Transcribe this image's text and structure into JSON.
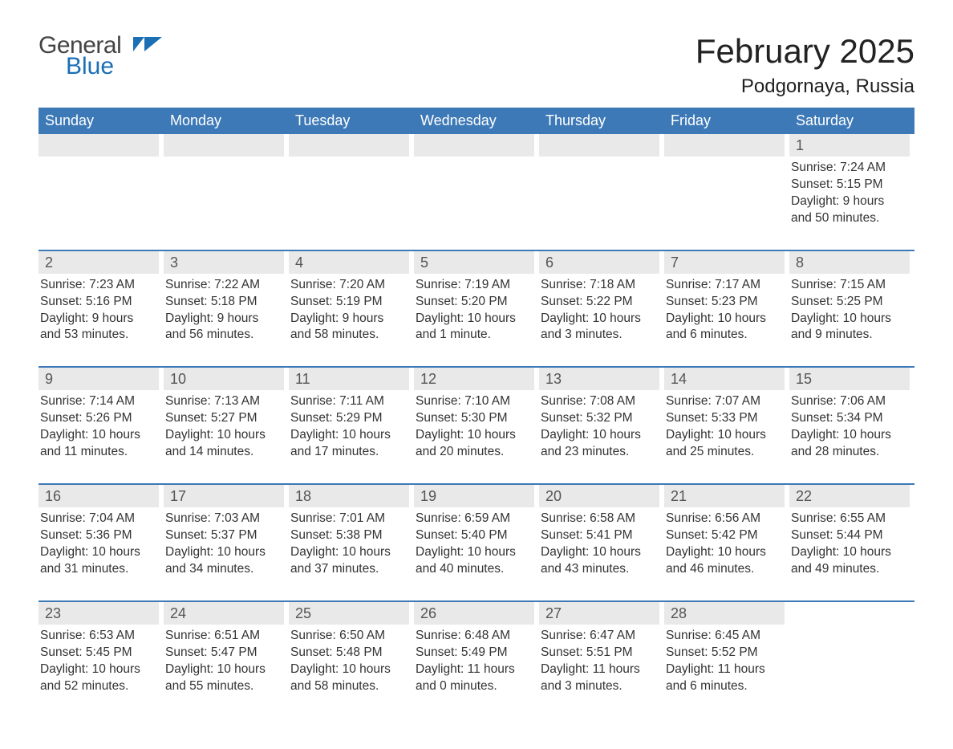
{
  "logo": {
    "word1": "General",
    "word2": "Blue"
  },
  "title": "February 2025",
  "location": "Podgornaya, Russia",
  "colors": {
    "header_bg": "#3d79b6",
    "divider": "#3d79b6",
    "logo_blue": "#1b6fb5",
    "day_bg": "#e9e9e9",
    "page_bg": "#ffffff",
    "text": "#333333"
  },
  "typography": {
    "title_fontsize": 42,
    "location_fontsize": 24,
    "header_fontsize": 18,
    "daynum_fontsize": 18,
    "body_fontsize": 15.5
  },
  "layout": {
    "columns": 7,
    "blank_leading_cells": 6
  },
  "headers": [
    "Sunday",
    "Monday",
    "Tuesday",
    "Wednesday",
    "Thursday",
    "Friday",
    "Saturday"
  ],
  "days": [
    {
      "n": 1,
      "sunrise": "Sunrise: 7:24 AM",
      "sunset": "Sunset: 5:15 PM",
      "day1": "Daylight: 9 hours",
      "day2": "and 50 minutes."
    },
    {
      "n": 2,
      "sunrise": "Sunrise: 7:23 AM",
      "sunset": "Sunset: 5:16 PM",
      "day1": "Daylight: 9 hours",
      "day2": "and 53 minutes."
    },
    {
      "n": 3,
      "sunrise": "Sunrise: 7:22 AM",
      "sunset": "Sunset: 5:18 PM",
      "day1": "Daylight: 9 hours",
      "day2": "and 56 minutes."
    },
    {
      "n": 4,
      "sunrise": "Sunrise: 7:20 AM",
      "sunset": "Sunset: 5:19 PM",
      "day1": "Daylight: 9 hours",
      "day2": "and 58 minutes."
    },
    {
      "n": 5,
      "sunrise": "Sunrise: 7:19 AM",
      "sunset": "Sunset: 5:20 PM",
      "day1": "Daylight: 10 hours",
      "day2": "and 1 minute."
    },
    {
      "n": 6,
      "sunrise": "Sunrise: 7:18 AM",
      "sunset": "Sunset: 5:22 PM",
      "day1": "Daylight: 10 hours",
      "day2": "and 3 minutes."
    },
    {
      "n": 7,
      "sunrise": "Sunrise: 7:17 AM",
      "sunset": "Sunset: 5:23 PM",
      "day1": "Daylight: 10 hours",
      "day2": "and 6 minutes."
    },
    {
      "n": 8,
      "sunrise": "Sunrise: 7:15 AM",
      "sunset": "Sunset: 5:25 PM",
      "day1": "Daylight: 10 hours",
      "day2": "and 9 minutes."
    },
    {
      "n": 9,
      "sunrise": "Sunrise: 7:14 AM",
      "sunset": "Sunset: 5:26 PM",
      "day1": "Daylight: 10 hours",
      "day2": "and 11 minutes."
    },
    {
      "n": 10,
      "sunrise": "Sunrise: 7:13 AM",
      "sunset": "Sunset: 5:27 PM",
      "day1": "Daylight: 10 hours",
      "day2": "and 14 minutes."
    },
    {
      "n": 11,
      "sunrise": "Sunrise: 7:11 AM",
      "sunset": "Sunset: 5:29 PM",
      "day1": "Daylight: 10 hours",
      "day2": "and 17 minutes."
    },
    {
      "n": 12,
      "sunrise": "Sunrise: 7:10 AM",
      "sunset": "Sunset: 5:30 PM",
      "day1": "Daylight: 10 hours",
      "day2": "and 20 minutes."
    },
    {
      "n": 13,
      "sunrise": "Sunrise: 7:08 AM",
      "sunset": "Sunset: 5:32 PM",
      "day1": "Daylight: 10 hours",
      "day2": "and 23 minutes."
    },
    {
      "n": 14,
      "sunrise": "Sunrise: 7:07 AM",
      "sunset": "Sunset: 5:33 PM",
      "day1": "Daylight: 10 hours",
      "day2": "and 25 minutes."
    },
    {
      "n": 15,
      "sunrise": "Sunrise: 7:06 AM",
      "sunset": "Sunset: 5:34 PM",
      "day1": "Daylight: 10 hours",
      "day2": "and 28 minutes."
    },
    {
      "n": 16,
      "sunrise": "Sunrise: 7:04 AM",
      "sunset": "Sunset: 5:36 PM",
      "day1": "Daylight: 10 hours",
      "day2": "and 31 minutes."
    },
    {
      "n": 17,
      "sunrise": "Sunrise: 7:03 AM",
      "sunset": "Sunset: 5:37 PM",
      "day1": "Daylight: 10 hours",
      "day2": "and 34 minutes."
    },
    {
      "n": 18,
      "sunrise": "Sunrise: 7:01 AM",
      "sunset": "Sunset: 5:38 PM",
      "day1": "Daylight: 10 hours",
      "day2": "and 37 minutes."
    },
    {
      "n": 19,
      "sunrise": "Sunrise: 6:59 AM",
      "sunset": "Sunset: 5:40 PM",
      "day1": "Daylight: 10 hours",
      "day2": "and 40 minutes."
    },
    {
      "n": 20,
      "sunrise": "Sunrise: 6:58 AM",
      "sunset": "Sunset: 5:41 PM",
      "day1": "Daylight: 10 hours",
      "day2": "and 43 minutes."
    },
    {
      "n": 21,
      "sunrise": "Sunrise: 6:56 AM",
      "sunset": "Sunset: 5:42 PM",
      "day1": "Daylight: 10 hours",
      "day2": "and 46 minutes."
    },
    {
      "n": 22,
      "sunrise": "Sunrise: 6:55 AM",
      "sunset": "Sunset: 5:44 PM",
      "day1": "Daylight: 10 hours",
      "day2": "and 49 minutes."
    },
    {
      "n": 23,
      "sunrise": "Sunrise: 6:53 AM",
      "sunset": "Sunset: 5:45 PM",
      "day1": "Daylight: 10 hours",
      "day2": "and 52 minutes."
    },
    {
      "n": 24,
      "sunrise": "Sunrise: 6:51 AM",
      "sunset": "Sunset: 5:47 PM",
      "day1": "Daylight: 10 hours",
      "day2": "and 55 minutes."
    },
    {
      "n": 25,
      "sunrise": "Sunrise: 6:50 AM",
      "sunset": "Sunset: 5:48 PM",
      "day1": "Daylight: 10 hours",
      "day2": "and 58 minutes."
    },
    {
      "n": 26,
      "sunrise": "Sunrise: 6:48 AM",
      "sunset": "Sunset: 5:49 PM",
      "day1": "Daylight: 11 hours",
      "day2": "and 0 minutes."
    },
    {
      "n": 27,
      "sunrise": "Sunrise: 6:47 AM",
      "sunset": "Sunset: 5:51 PM",
      "day1": "Daylight: 11 hours",
      "day2": "and 3 minutes."
    },
    {
      "n": 28,
      "sunrise": "Sunrise: 6:45 AM",
      "sunset": "Sunset: 5:52 PM",
      "day1": "Daylight: 11 hours",
      "day2": "and 6 minutes."
    }
  ]
}
